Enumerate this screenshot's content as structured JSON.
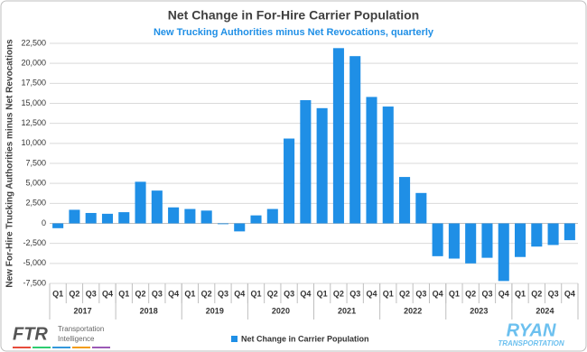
{
  "chart_data": {
    "type": "bar",
    "title": "Net Change in For-Hire Carrier Population",
    "subtitle": "New Trucking Authorities minus Net Revocations, quarterly",
    "y_label": "New For-Hire Trucking Authorities minus Net Revocations",
    "categories": [
      "Q1",
      "Q2",
      "Q3",
      "Q4",
      "Q1",
      "Q2",
      "Q3",
      "Q4",
      "Q1",
      "Q2",
      "Q3",
      "Q4",
      "Q1",
      "Q2",
      "Q3",
      "Q4",
      "Q1",
      "Q2",
      "Q3",
      "Q4",
      "Q1",
      "Q2",
      "Q3",
      "Q4",
      "Q1",
      "Q2",
      "Q3",
      "Q4",
      "Q1",
      "Q2",
      "Q3",
      "Q4"
    ],
    "groups": [
      "2017",
      "2018",
      "2019",
      "2020",
      "2021",
      "2022",
      "2023",
      "2024"
    ],
    "series": [
      {
        "name": "Net Change in Carrier Population",
        "color": "#1f8fe6",
        "values": [
          -600,
          1700,
          1300,
          1200,
          1400,
          5200,
          4100,
          2000,
          1800,
          1600,
          -100,
          -1000,
          1000,
          1800,
          10600,
          15400,
          14400,
          21900,
          20900,
          15800,
          14600,
          5800,
          3800,
          -4100,
          -4400,
          -5000,
          -4300,
          -7200,
          -4200,
          -2900,
          -2700,
          -2100
        ]
      }
    ],
    "ylim": [
      -7500,
      22500
    ],
    "yticks": [
      {
        "value": -7500,
        "label": "-7,500"
      },
      {
        "value": -5000,
        "label": "-5,000"
      },
      {
        "value": -2500,
        "label": "-2,500"
      },
      0,
      {
        "value": 2500,
        "label": "2,500"
      },
      {
        "value": 5000,
        "label": "5,000"
      },
      {
        "value": 7500,
        "label": "7,500"
      },
      {
        "value": 10000,
        "label": "10,000"
      },
      {
        "value": 12500,
        "label": "12,500"
      },
      {
        "value": 15000,
        "label": "15,000"
      },
      {
        "value": 17500,
        "label": "17,500"
      },
      {
        "value": 20000,
        "label": "20,000"
      },
      {
        "value": 22500,
        "label": "22,500"
      }
    ],
    "grid": true,
    "legend": "bottom"
  },
  "footer": {
    "ftr": "FTR",
    "ftr_line1": "Transportation",
    "ftr_line2": "Intelligence",
    "ryan": "RYAN",
    "ryan_sub": "TRANSPORTATION"
  }
}
